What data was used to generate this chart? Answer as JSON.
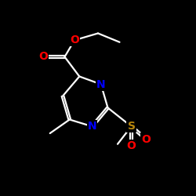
{
  "background_color": "#000000",
  "bond_color": "#ffffff",
  "atom_colors": {
    "O": "#ff0000",
    "N": "#0000ff",
    "S": "#b8860b"
  },
  "lw": 1.6,
  "fontsize": 9
}
